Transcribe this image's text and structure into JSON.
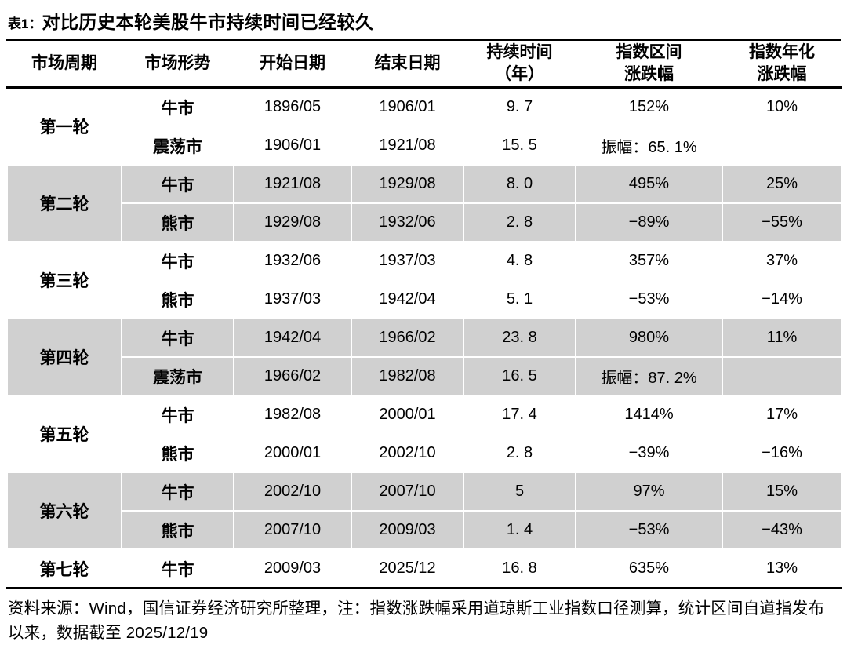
{
  "title": {
    "prefix": "表1：",
    "text": "对比历史本轮美股牛市持续时间已经较久"
  },
  "table": {
    "columns": [
      [
        "市场周期"
      ],
      [
        "市场形势"
      ],
      [
        "开始日期"
      ],
      [
        "结束日期"
      ],
      [
        "持续时间",
        "（年）"
      ],
      [
        "指数区间",
        "涨跌幅"
      ],
      [
        "指数年化",
        "涨跌幅"
      ]
    ],
    "groups": [
      {
        "cycle": "第一轮",
        "shaded": false,
        "rows": [
          [
            "牛市",
            "1896/05",
            "1906/01",
            "9. 7",
            "152%",
            "10%"
          ],
          [
            "震荡市",
            "1906/01",
            "1921/08",
            "15. 5",
            "振幅：65. 1%",
            ""
          ]
        ]
      },
      {
        "cycle": "第二轮",
        "shaded": true,
        "rows": [
          [
            "牛市",
            "1921/08",
            "1929/08",
            "8. 0",
            "495%",
            "25%"
          ],
          [
            "熊市",
            "1929/08",
            "1932/06",
            "2. 8",
            "−89%",
            "−55%"
          ]
        ]
      },
      {
        "cycle": "第三轮",
        "shaded": false,
        "rows": [
          [
            "牛市",
            "1932/06",
            "1937/03",
            "4. 8",
            "357%",
            "37%"
          ],
          [
            "熊市",
            "1937/03",
            "1942/04",
            "5. 1",
            "−53%",
            "−14%"
          ]
        ]
      },
      {
        "cycle": "第四轮",
        "shaded": true,
        "rows": [
          [
            "牛市",
            "1942/04",
            "1966/02",
            "23. 8",
            "980%",
            "11%"
          ],
          [
            "震荡市",
            "1966/02",
            "1982/08",
            "16. 5",
            "振幅：87. 2%",
            ""
          ]
        ]
      },
      {
        "cycle": "第五轮",
        "shaded": false,
        "rows": [
          [
            "牛市",
            "1982/08",
            "2000/01",
            "17. 4",
            "1414%",
            "17%"
          ],
          [
            "熊市",
            "2000/01",
            "2002/10",
            "2. 8",
            "−39%",
            "−16%"
          ]
        ]
      },
      {
        "cycle": "第六轮",
        "shaded": true,
        "rows": [
          [
            "牛市",
            "2002/10",
            "2007/10",
            "5",
            "97%",
            "15%"
          ],
          [
            "熊市",
            "2007/10",
            "2009/03",
            "1. 4",
            "−53%",
            "−43%"
          ]
        ]
      },
      {
        "cycle": "第七轮",
        "shaded": false,
        "rows": [
          [
            "牛市",
            "2009/03",
            "2025/12",
            "16. 8",
            "635%",
            "13%"
          ]
        ]
      }
    ]
  },
  "footnote": "资料来源：Wind，国信证券经济研究所整理，注：指数涨跌幅采用道琼斯工业指数口径测算，统计区间自道指发布以来，数据截至 2025/12/19",
  "colors": {
    "shaded_row_bg": "#d0d0d0",
    "text": "#000000",
    "rule": "#000000"
  }
}
